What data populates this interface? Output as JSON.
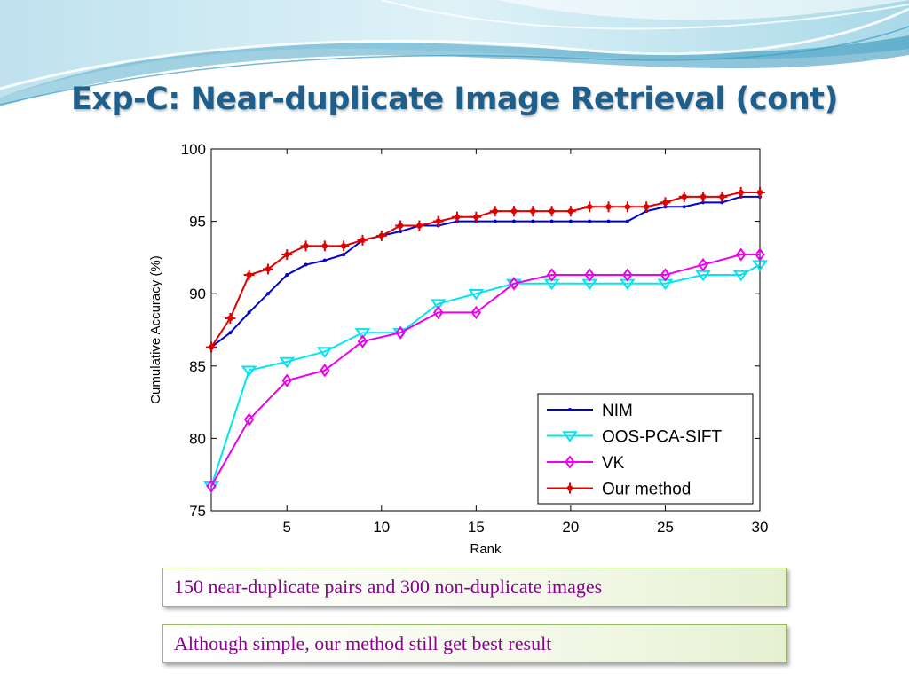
{
  "slide": {
    "title": "Exp-C: Near-duplicate Image Retrieval (cont)",
    "notes": [
      "150 near-duplicate pairs and 300 non-duplicate images",
      "Although simple, our method still get best result"
    ]
  },
  "colors": {
    "title": "#1f5f8b",
    "note_text": "#8a0090",
    "banner_sky": "#d6eef6"
  },
  "chart_data": {
    "type": "line",
    "title": "",
    "xlabel": "Rank",
    "ylabel": "Cumulative Accuracy (%)",
    "xlim": [
      1,
      30
    ],
    "ylim": [
      75,
      100
    ],
    "xticks": [
      5,
      10,
      15,
      20,
      25,
      30
    ],
    "yticks": [
      75,
      80,
      85,
      90,
      95,
      100
    ],
    "grid": false,
    "legend_position": "bottom-right",
    "series": [
      {
        "name": "NIM",
        "color": "#0000d0",
        "marker": "dot",
        "x": [
          1,
          2,
          3,
          4,
          5,
          6,
          7,
          8,
          9,
          10,
          11,
          12,
          13,
          14,
          15,
          16,
          17,
          18,
          19,
          20,
          21,
          22,
          23,
          24,
          25,
          26,
          27,
          28,
          29,
          30
        ],
        "y": [
          86.3,
          87.3,
          88.7,
          90.0,
          91.3,
          92.0,
          92.3,
          92.7,
          93.7,
          94.0,
          94.3,
          94.7,
          94.7,
          95.0,
          95.0,
          95.0,
          95.0,
          95.0,
          95.0,
          95.0,
          95.0,
          95.0,
          95.0,
          95.7,
          96.0,
          96.0,
          96.3,
          96.3,
          96.7,
          96.7
        ]
      },
      {
        "name": "OOS-PCA-SIFT",
        "color": "#00e6ee",
        "marker": "triangle-down",
        "x": [
          1,
          3,
          5,
          7,
          9,
          11,
          13,
          15,
          17,
          19,
          21,
          23,
          25,
          27,
          29,
          30
        ],
        "y": [
          76.7,
          84.7,
          85.3,
          86.0,
          87.3,
          87.3,
          89.3,
          90.0,
          90.7,
          90.7,
          90.7,
          90.7,
          90.7,
          91.3,
          91.3,
          92.0
        ]
      },
      {
        "name": "VK",
        "color": "#ee00ee",
        "marker": "diamond",
        "x": [
          1,
          3,
          5,
          7,
          9,
          11,
          13,
          15,
          17,
          19,
          21,
          23,
          25,
          27,
          29,
          30
        ],
        "y": [
          76.7,
          81.3,
          84.0,
          84.7,
          86.7,
          87.3,
          88.7,
          88.7,
          90.7,
          91.3,
          91.3,
          91.3,
          91.3,
          92.0,
          92.7,
          92.7
        ]
      },
      {
        "name": "Our method",
        "color": "#e00000",
        "marker": "star",
        "x": [
          1,
          2,
          3,
          4,
          5,
          6,
          7,
          8,
          9,
          10,
          11,
          12,
          13,
          14,
          15,
          16,
          17,
          18,
          19,
          20,
          21,
          22,
          23,
          24,
          25,
          26,
          27,
          28,
          29,
          30
        ],
        "y": [
          86.3,
          88.3,
          91.3,
          91.7,
          92.7,
          93.3,
          93.3,
          93.3,
          93.7,
          94.0,
          94.7,
          94.7,
          95.0,
          95.3,
          95.3,
          95.7,
          95.7,
          95.7,
          95.7,
          95.7,
          96.0,
          96.0,
          96.0,
          96.0,
          96.3,
          96.7,
          96.7,
          96.7,
          97.0,
          97.0
        ]
      }
    ]
  }
}
